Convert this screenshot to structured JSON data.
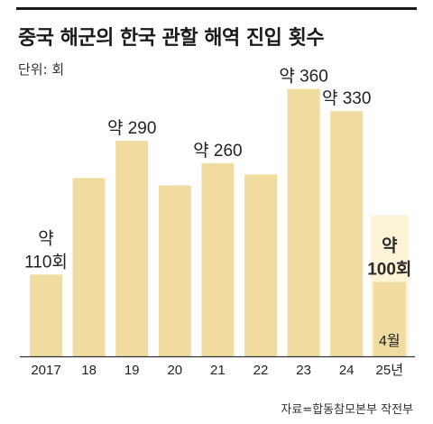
{
  "chart_data": {
    "type": "bar",
    "title": "중국 해군의 한국 관할 해역 진입 횟수",
    "unit_label": "단위: 회",
    "source": "자료=합동참모본부 작전부",
    "categories": [
      "2017",
      "18",
      "19",
      "20",
      "21",
      "22",
      "23",
      "24",
      "25년"
    ],
    "values": [
      110,
      240,
      290,
      230,
      260,
      245,
      360,
      330,
      100
    ],
    "ylim": [
      0,
      380
    ],
    "colors": {
      "bar": "#f0dba0",
      "highlight_bg": "#fdf3d6",
      "axis": "#333333"
    },
    "data_labels": [
      {
        "index": 0,
        "lines": [
          "약",
          "110회"
        ],
        "bold": false
      },
      {
        "index": 2,
        "lines": [
          "약 290"
        ],
        "bold": false
      },
      {
        "index": 4,
        "lines": [
          "약 260"
        ],
        "bold": false
      },
      {
        "index": 6,
        "lines": [
          "약 360"
        ],
        "bold": false
      },
      {
        "index": 7,
        "lines": [
          "약 330"
        ],
        "bold": false
      },
      {
        "index": 8,
        "lines": [
          "약",
          "100회"
        ],
        "bold": true
      }
    ],
    "inside_labels": [
      {
        "index": 8,
        "text": "4월"
      }
    ]
  }
}
